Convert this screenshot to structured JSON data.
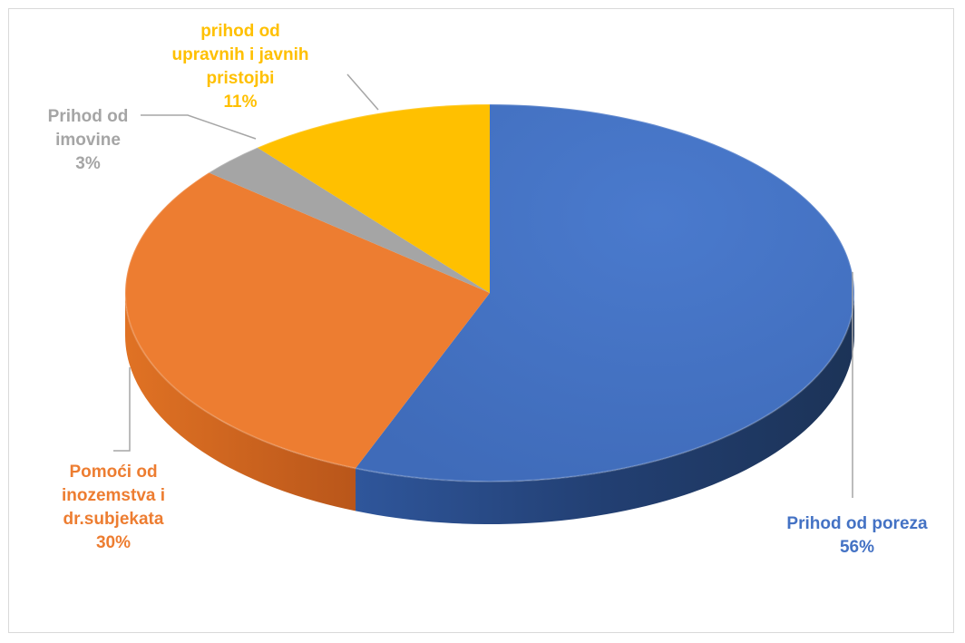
{
  "chart_data": {
    "type": "pie",
    "style": "3d",
    "title": "",
    "slices": [
      {
        "label": "Prihod od poreza",
        "value": 56,
        "pct_text": "56%",
        "color": "#4472C4"
      },
      {
        "label": "Pomoći od inozemstva i dr.subjekata",
        "value": 30,
        "pct_text": "30%",
        "color": "#ED7D31"
      },
      {
        "label": "Prihod od imovine",
        "value": 3,
        "pct_text": "3%",
        "color": "#A5A5A5"
      },
      {
        "label": "prihod od upravnih i javnih pristojbi",
        "value": 11,
        "pct_text": "11%",
        "color": "#FFC000"
      }
    ]
  }
}
